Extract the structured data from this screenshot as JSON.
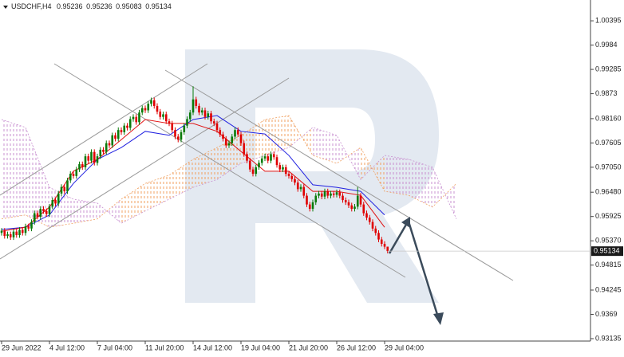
{
  "chart_data": {
    "type": "candlestick",
    "symbol": "USDCHF,H4",
    "categories": [
      "29 Jun 2022",
      null,
      null,
      null,
      null,
      null,
      null,
      null,
      null,
      null,
      null,
      null,
      null,
      null,
      null,
      null,
      "4 Jul 12:00",
      null,
      null,
      null,
      null,
      null,
      null,
      null,
      null,
      null,
      null,
      null,
      null,
      null,
      null,
      null,
      "7 Jul 04:00",
      null,
      null,
      null,
      null,
      null,
      null,
      null,
      null,
      null,
      null,
      null,
      null,
      null,
      null,
      null,
      "11 Jul 20:00",
      null,
      null,
      null,
      null,
      null,
      null,
      null,
      null,
      null,
      null,
      null,
      null,
      null,
      null,
      null,
      "14 Jul 12:00",
      null,
      null,
      null,
      null,
      null,
      null,
      null,
      null,
      null,
      null,
      null,
      null,
      null,
      null,
      null,
      "19 Jul 04:00",
      null,
      null,
      null,
      null,
      null,
      null,
      null,
      null,
      null,
      null,
      null,
      null,
      null,
      null,
      null,
      "21 Jul 20:00",
      null,
      null,
      null,
      null,
      null,
      null,
      null,
      null,
      null,
      null,
      null,
      null,
      null,
      null,
      null,
      "26 Jul 12:00",
      null,
      null,
      null,
      null,
      null,
      null,
      null,
      null,
      null,
      null,
      null,
      null,
      null,
      null,
      null,
      "29 Jul 04:00",
      null
    ],
    "open": [
      0.9555,
      0.956,
      0.9548,
      0.9552,
      0.9545,
      0.9558,
      0.955,
      0.9562,
      0.9555,
      0.957,
      0.9565,
      0.958,
      0.96,
      0.9592,
      0.961,
      0.9605,
      0.9598,
      0.9615,
      0.963,
      0.9622,
      0.9645,
      0.966,
      0.965,
      0.9675,
      0.969,
      0.9685,
      0.97,
      0.9712,
      0.9705,
      0.973,
      0.972,
      0.974,
      0.9715,
      0.973,
      0.9745,
      0.974,
      0.976,
      0.9755,
      0.9778,
      0.977,
      0.979,
      0.9785,
      0.98,
      0.9795,
      0.9815,
      0.982,
      0.9808,
      0.983,
      0.984,
      0.9835,
      0.985,
      0.9858,
      0.9845,
      0.9832,
      0.982,
      0.9826,
      0.981,
      0.9805,
      0.979,
      0.9775,
      0.9768,
      0.9785,
      0.98,
      0.9815,
      0.983,
      0.986,
      0.9845,
      0.983,
      0.9835,
      0.982,
      0.9828,
      0.981,
      0.9805,
      0.979,
      0.978,
      0.977,
      0.9755,
      0.976,
      0.9775,
      0.979,
      0.978,
      0.976,
      0.9735,
      0.972,
      0.97,
      0.969,
      0.9705,
      0.9715,
      0.9725,
      0.973,
      0.972,
      0.9735,
      0.9728,
      0.971,
      0.97,
      0.9705,
      0.969,
      0.9685,
      0.9678,
      0.967,
      0.9655,
      0.966,
      0.964,
      0.962,
      0.961,
      0.9625,
      0.964,
      0.9645,
      0.9638,
      0.965,
      0.964,
      0.9645,
      0.9642,
      0.9648,
      0.964,
      0.963,
      0.9625,
      0.9618,
      0.961,
      0.9615,
      0.964,
      0.962,
      0.96,
      0.959,
      0.958,
      0.9565,
      0.9555,
      0.954,
      0.953,
      0.95236
    ],
    "high": [
      0.9566,
      0.9566,
      0.9558,
      0.9558,
      0.9564,
      0.9564,
      0.9568,
      0.9568,
      0.9576,
      0.9576,
      0.9586,
      0.9606,
      0.9606,
      0.9616,
      0.9616,
      0.9611,
      0.9621,
      0.9636,
      0.9636,
      0.9651,
      0.9666,
      0.9666,
      0.9681,
      0.9696,
      0.9696,
      0.9706,
      0.9718,
      0.9718,
      0.9736,
      0.9736,
      0.9746,
      0.9746,
      0.9736,
      0.9751,
      0.9751,
      0.9766,
      0.9766,
      0.9784,
      0.9784,
      0.9796,
      0.9796,
      0.9806,
      0.9806,
      0.9821,
      0.9826,
      0.9826,
      0.9836,
      0.9846,
      0.9846,
      0.9856,
      0.9864,
      0.9864,
      0.9851,
      0.9838,
      0.9832,
      0.9832,
      0.9816,
      0.9811,
      0.9796,
      0.9781,
      0.9791,
      0.9806,
      0.9821,
      0.9836,
      0.989,
      0.9866,
      0.9851,
      0.9841,
      0.9841,
      0.9834,
      0.9834,
      0.9816,
      0.9811,
      0.9796,
      0.9786,
      0.9776,
      0.9766,
      0.9781,
      0.9796,
      0.9796,
      0.9786,
      0.9766,
      0.9741,
      0.9726,
      0.9706,
      0.9711,
      0.9721,
      0.9731,
      0.9736,
      0.9736,
      0.9741,
      0.9741,
      0.9734,
      0.9716,
      0.9711,
      0.9711,
      0.9696,
      0.9691,
      0.9684,
      0.9676,
      0.9666,
      0.9666,
      0.9646,
      0.9626,
      0.9631,
      0.9646,
      0.9651,
      0.9651,
      0.9656,
      0.9656,
      0.9651,
      0.9651,
      0.9654,
      0.9654,
      0.9646,
      0.9636,
      0.9631,
      0.9624,
      0.9621,
      0.966,
      0.9646,
      0.9626,
      0.9606,
      0.9596,
      0.9586,
      0.9571,
      0.9561,
      0.9546,
      0.9536,
      0.95236
    ],
    "low": [
      0.9549,
      0.9542,
      0.9542,
      0.9539,
      0.9539,
      0.9544,
      0.9544,
      0.9549,
      0.9549,
      0.9559,
      0.9559,
      0.9574,
      0.9586,
      0.9586,
      0.9599,
      0.9592,
      0.9592,
      0.9609,
      0.9616,
      0.9616,
      0.9639,
      0.9644,
      0.9644,
      0.9669,
      0.9679,
      0.9679,
      0.9694,
      0.9699,
      0.9699,
      0.9714,
      0.9714,
      0.9709,
      0.9709,
      0.9724,
      0.9734,
      0.9734,
      0.9749,
      0.9749,
      0.9764,
      0.9764,
      0.9779,
      0.9779,
      0.9789,
      0.9789,
      0.9809,
      0.9802,
      0.9802,
      0.9824,
      0.9829,
      0.9829,
      0.9844,
      0.9839,
      0.9826,
      0.9814,
      0.9814,
      0.9804,
      0.9799,
      0.9784,
      0.9769,
      0.9762,
      0.9762,
      0.9779,
      0.9794,
      0.9809,
      0.9824,
      0.9839,
      0.9824,
      0.9824,
      0.9814,
      0.9814,
      0.9804,
      0.9799,
      0.9784,
      0.9774,
      0.9764,
      0.9749,
      0.9749,
      0.9754,
      0.9769,
      0.9774,
      0.9754,
      0.9729,
      0.9714,
      0.9694,
      0.9684,
      0.9684,
      0.9699,
      0.9709,
      0.9719,
      0.9714,
      0.9714,
      0.9722,
      0.9704,
      0.9694,
      0.9694,
      0.9684,
      0.9679,
      0.9672,
      0.9664,
      0.9649,
      0.9649,
      0.9634,
      0.9614,
      0.9604,
      0.9604,
      0.9619,
      0.9634,
      0.9632,
      0.9632,
      0.9634,
      0.9634,
      0.9636,
      0.9636,
      0.9634,
      0.9624,
      0.9619,
      0.9612,
      0.9604,
      0.9604,
      0.9609,
      0.9614,
      0.9594,
      0.9584,
      0.9574,
      0.9559,
      0.9549,
      0.9534,
      0.9524,
      0.9518,
      0.95083
    ],
    "close": [
      0.956,
      0.9548,
      0.9552,
      0.9545,
      0.9558,
      0.955,
      0.9562,
      0.9555,
      0.957,
      0.9565,
      0.958,
      0.96,
      0.9592,
      0.961,
      0.9605,
      0.9598,
      0.9615,
      0.963,
      0.9622,
      0.9645,
      0.966,
      0.965,
      0.9675,
      0.969,
      0.9685,
      0.97,
      0.9712,
      0.9705,
      0.973,
      0.972,
      0.974,
      0.9715,
      0.973,
      0.9745,
      0.974,
      0.976,
      0.9755,
      0.9778,
      0.977,
      0.979,
      0.9785,
      0.98,
      0.9795,
      0.9815,
      0.982,
      0.9808,
      0.983,
      0.984,
      0.9835,
      0.985,
      0.9858,
      0.9845,
      0.9832,
      0.982,
      0.9826,
      0.981,
      0.9805,
      0.979,
      0.9775,
      0.9768,
      0.9785,
      0.98,
      0.9815,
      0.983,
      0.986,
      0.9845,
      0.983,
      0.9835,
      0.982,
      0.9828,
      0.981,
      0.9805,
      0.979,
      0.978,
      0.977,
      0.9755,
      0.976,
      0.9775,
      0.979,
      0.978,
      0.976,
      0.9735,
      0.972,
      0.97,
      0.969,
      0.9705,
      0.9715,
      0.9725,
      0.973,
      0.972,
      0.9735,
      0.9728,
      0.971,
      0.97,
      0.9705,
      0.969,
      0.9685,
      0.9678,
      0.967,
      0.9655,
      0.966,
      0.964,
      0.962,
      0.961,
      0.9625,
      0.964,
      0.9645,
      0.9638,
      0.965,
      0.964,
      0.9645,
      0.9642,
      0.9648,
      0.964,
      0.963,
      0.9625,
      0.9618,
      0.961,
      0.9615,
      0.964,
      0.962,
      0.96,
      0.959,
      0.958,
      0.9565,
      0.9555,
      0.954,
      0.953,
      0.95236,
      0.95134
    ],
    "up_color": "#0a7a0a",
    "down_color": "#e00000",
    "lines": [
      {
        "color": "#2020e0",
        "x": [
          0,
          8,
          16,
          24,
          32,
          40,
          48,
          56,
          64,
          72,
          80,
          88,
          96,
          104,
          112,
          120,
          128
        ],
        "values": [
          0.9563,
          0.9568,
          0.9596,
          0.9668,
          0.9723,
          0.975,
          0.9787,
          0.9778,
          0.9814,
          0.9823,
          0.9787,
          0.9781,
          0.9732,
          0.9665,
          0.9659,
          0.965,
          0.9596
        ]
      },
      {
        "color": "#e01010",
        "x": [
          0,
          8,
          16,
          24,
          32,
          40,
          48,
          56,
          64,
          72,
          80,
          88,
          96,
          104,
          112,
          120,
          128
        ],
        "values": [
          0.9559,
          0.9568,
          0.9614,
          0.9696,
          0.9723,
          0.9768,
          0.9814,
          0.9805,
          0.9805,
          0.9787,
          0.9741,
          0.9696,
          0.9696,
          0.965,
          0.965,
          0.9641,
          0.9568
        ]
      }
    ],
    "cloud": {
      "x": [
        0,
        8,
        16,
        24,
        32,
        40,
        48,
        56,
        64,
        72,
        80,
        88,
        96,
        104,
        112,
        120,
        128,
        136,
        144,
        152
      ],
      "span_a": [
        0.9814,
        0.9796,
        0.9659,
        0.9632,
        0.9623,
        0.9577,
        0.9605,
        0.9632,
        0.9659,
        0.9677,
        0.9714,
        0.9732,
        0.975,
        0.9796,
        0.9778,
        0.9677,
        0.9732,
        0.9723,
        0.9705,
        0.9587
      ],
      "span_b": [
        0.9587,
        0.9596,
        0.9568,
        0.9577,
        0.9587,
        0.9632,
        0.9668,
        0.9687,
        0.9723,
        0.975,
        0.9778,
        0.9814,
        0.9823,
        0.9732,
        0.9714,
        0.975,
        0.965,
        0.9641,
        0.9614,
        0.9668
      ],
      "up_color": "#c890d0",
      "down_color": "#f0a060"
    },
    "ylim": [
      0.9308,
      1.0087
    ],
    "yticks": [
      1.00395,
      0.9984,
      0.99285,
      0.9873,
      {
        "value": 0.9816,
        "label": "0.98160"
      },
      0.97605,
      {
        "value": 0.9705,
        "label": "0.97050"
      },
      {
        "value": 0.9648,
        "label": "0.96480"
      },
      0.95925,
      {
        "value": 0.9537,
        "label": "0.95370"
      },
      0.94815,
      0.94245,
      0.9369,
      0.93135
    ]
  }
}
